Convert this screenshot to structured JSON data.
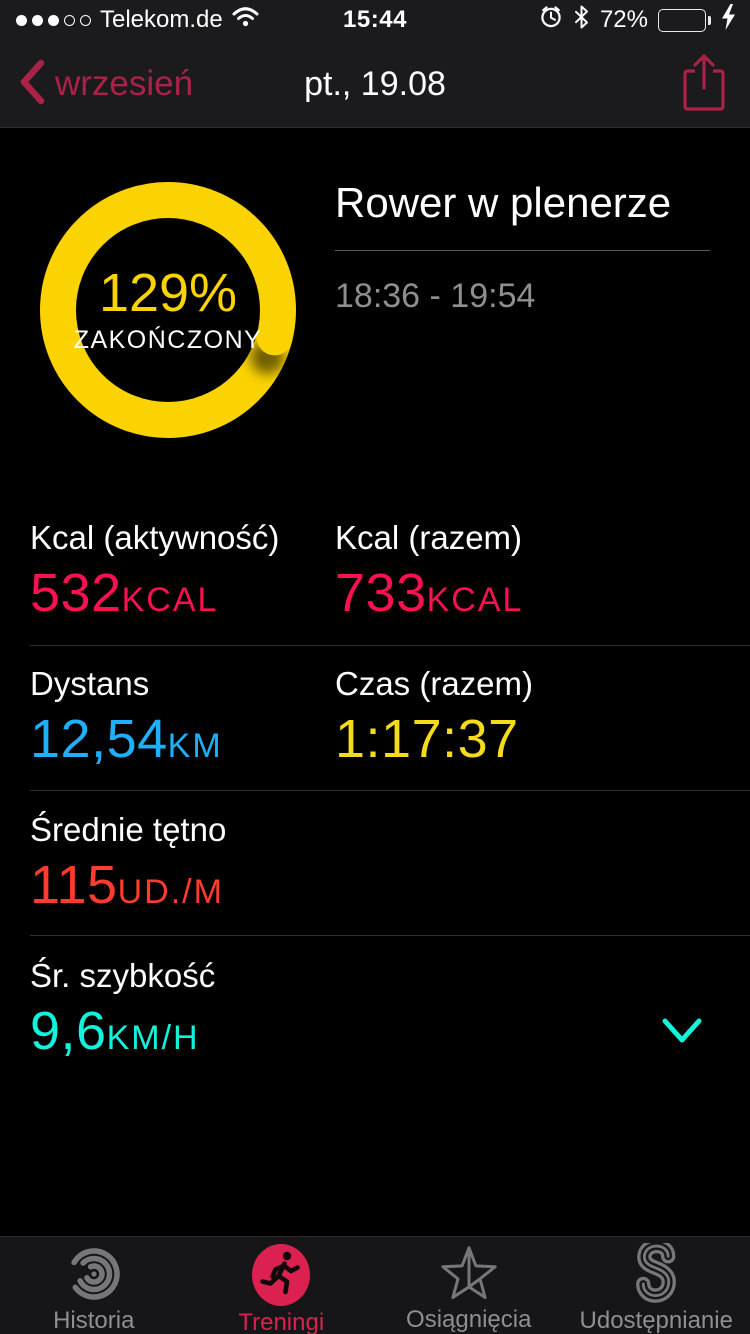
{
  "status_bar": {
    "carrier": "Telekom.de",
    "time": "15:44",
    "battery_percent": "72%",
    "signal": {
      "filled": 3,
      "total": 5
    },
    "icons": [
      "signal-dots-icon",
      "wifi-icon",
      "alarm-icon",
      "bluetooth-icon",
      "battery-icon",
      "charging-bolt-icon"
    ]
  },
  "nav_bar": {
    "back_label": "wrzesień",
    "title": "pt., 19.08",
    "icons": [
      "back-chevron-icon",
      "share-icon"
    ]
  },
  "workout": {
    "ring": {
      "percent_label": "129%",
      "status_label": "ZAKOŃCZONY",
      "color": "#fbd303"
    },
    "name": "Rower w plenerze",
    "time_range": "18:36 - 19:54",
    "stats": [
      {
        "label": "Kcal (aktywność)",
        "value": "532",
        "unit": "KCAL",
        "color": "#fa114f"
      },
      {
        "label": "Kcal (razem)",
        "value": "733",
        "unit": "KCAL",
        "color": "#fa114f"
      },
      {
        "label": "Dystans",
        "value": "12,54",
        "unit": "KM",
        "color": "#1fb0fc"
      },
      {
        "label": "Czas (razem)",
        "value": "1:17:37",
        "unit": "",
        "color": "#f5dc1a"
      },
      {
        "label": "Średnie tętno",
        "value": "115",
        "unit": "UD./M",
        "color": "#fe3b2f"
      },
      {
        "label": "Śr. szybkość",
        "value": "9,6",
        "unit": "KM/H",
        "color": "#12f3dc"
      }
    ],
    "expand_icon": "chevron-down-icon",
    "expand_color": "#12f3dc"
  },
  "tab_bar": {
    "active_color": "#da2150",
    "items": [
      {
        "label": "Historia",
        "icon": "history-rings-icon",
        "active": false
      },
      {
        "label": "Treningi",
        "icon": "runner-icon",
        "active": true
      },
      {
        "label": "Osiągnięcia",
        "icon": "star-icon",
        "active": false
      },
      {
        "label": "Udostępnianie",
        "icon": "sharing-icon",
        "active": false
      }
    ]
  },
  "colors": {
    "nav_accent": "#ab2248",
    "ring_yellow": "#fbd303",
    "battery_green": "#57d768",
    "separator": "#2f2f31",
    "muted_text": "#8e8e93"
  }
}
